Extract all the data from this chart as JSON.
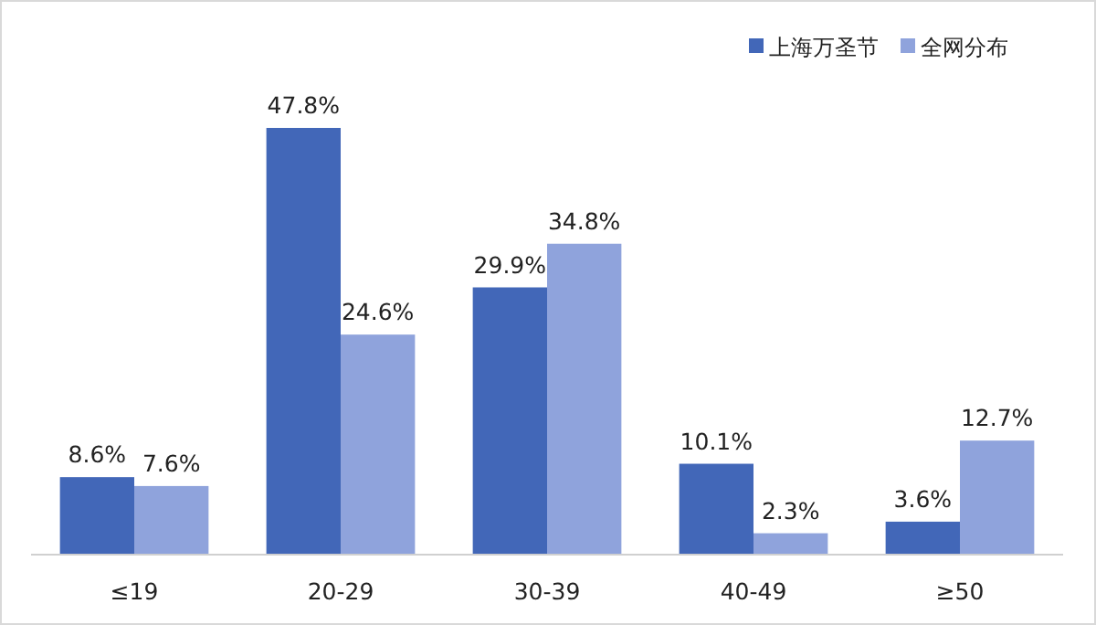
{
  "chart_data": {
    "type": "bar",
    "categories": [
      "≤19",
      "20-29",
      "30-39",
      "40-49",
      "≥50"
    ],
    "series": [
      {
        "name": "上海万圣节",
        "color": "#4267b8",
        "values": [
          8.6,
          47.8,
          29.9,
          10.1,
          3.6
        ],
        "value_labels": [
          "8.6%",
          "47.8%",
          "29.9%",
          "10.1%",
          "3.6%"
        ]
      },
      {
        "name": "全网分布",
        "color": "#8fa3dc",
        "values": [
          7.6,
          24.6,
          34.8,
          2.3,
          12.7
        ],
        "value_labels": [
          "7.6%",
          "24.6%",
          "34.8%",
          "2.3%",
          "12.7%"
        ]
      }
    ],
    "legend": "top right",
    "grid": false
  }
}
